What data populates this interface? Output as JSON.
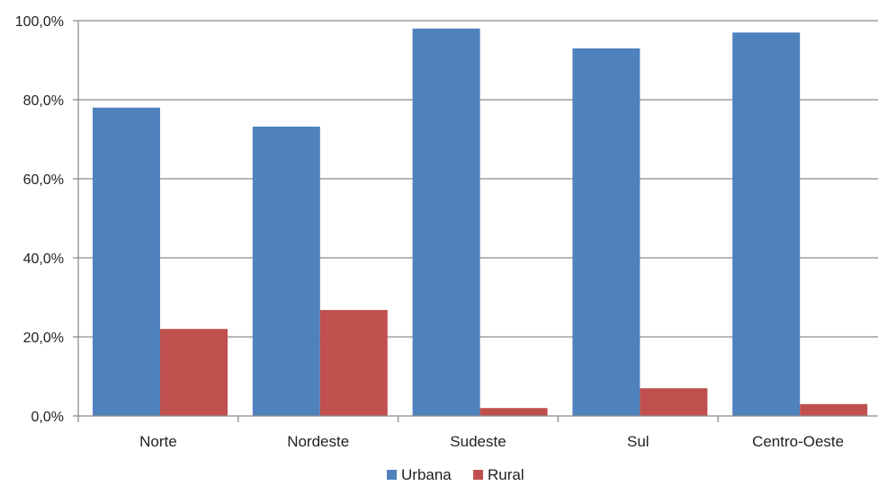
{
  "chart_data": {
    "type": "bar",
    "categories": [
      "Norte",
      "Nordeste",
      "Sudeste",
      "Sul",
      "Centro-Oeste"
    ],
    "series": [
      {
        "name": "Urbana",
        "values": [
          78.0,
          73.2,
          98.0,
          93.0,
          97.0
        ],
        "color": "#4f81bd"
      },
      {
        "name": "Rural",
        "values": [
          22.0,
          26.8,
          2.0,
          7.0,
          3.0
        ],
        "color": "#c0504d"
      }
    ],
    "y_ticks": [
      "0,0%",
      "20,0%",
      "40,0%",
      "60,0%",
      "80,0%",
      "100,0%"
    ],
    "ylim": [
      0,
      100
    ],
    "grid": true,
    "legend": "bottom-center"
  }
}
